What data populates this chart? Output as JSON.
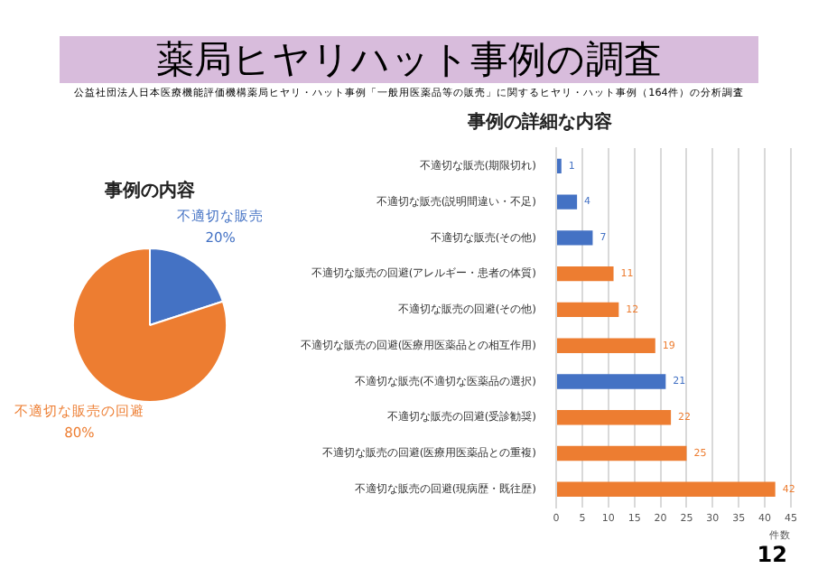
{
  "chart_data": [
    {
      "type": "other",
      "title": "薬局ヒヤリハット事例の調査",
      "subtitle": "公益社団法人日本医療機能評価機構薬局ヒヤリ・ハット事例「一般用医薬品等の販売」に関するヒヤリ・ハット事例（164件）の分析調査",
      "annotations": [
        "12"
      ]
    },
    {
      "type": "pie",
      "title": "事例の内容",
      "categories": [
        "不適切な販売",
        "不適切な販売の回避"
      ],
      "values": [
        20,
        80
      ],
      "value_labels": [
        "20%",
        "80%"
      ],
      "colors": [
        "#4472c4",
        "#ed7d31"
      ]
    },
    {
      "type": "bar",
      "orientation": "horizontal",
      "title": "事例の詳細な内容",
      "xlabel": "件数",
      "categories": [
        "不適切な販売(期限切れ)",
        "不適切な販売(説明間違い・不足)",
        "不適切な販売(その他)",
        "不適切な販売の回避(アレルギー・患者の体質)",
        "不適切な販売の回避(その他)",
        "不適切な販売の回避(医療用医薬品との相互作用)",
        "不適切な販売(不適切な医薬品の選択)",
        "不適切な販売の回避(受診勧奨)",
        "不適切な販売の回避(医療用医薬品との重複)",
        "不適切な販売の回避(現病歴・既往歴)"
      ],
      "values": [
        1,
        4,
        7,
        11,
        12,
        19,
        21,
        22,
        25,
        42
      ],
      "colors": [
        "#4472c4",
        "#4472c4",
        "#4472c4",
        "#ed7d31",
        "#ed7d31",
        "#ed7d31",
        "#4472c4",
        "#ed7d31",
        "#ed7d31",
        "#ed7d31"
      ],
      "xlim": [
        0,
        45
      ],
      "xticks": [
        0,
        5,
        10,
        15,
        20,
        25,
        30,
        35,
        40,
        45
      ],
      "grid": "x",
      "data_labels": true
    }
  ]
}
